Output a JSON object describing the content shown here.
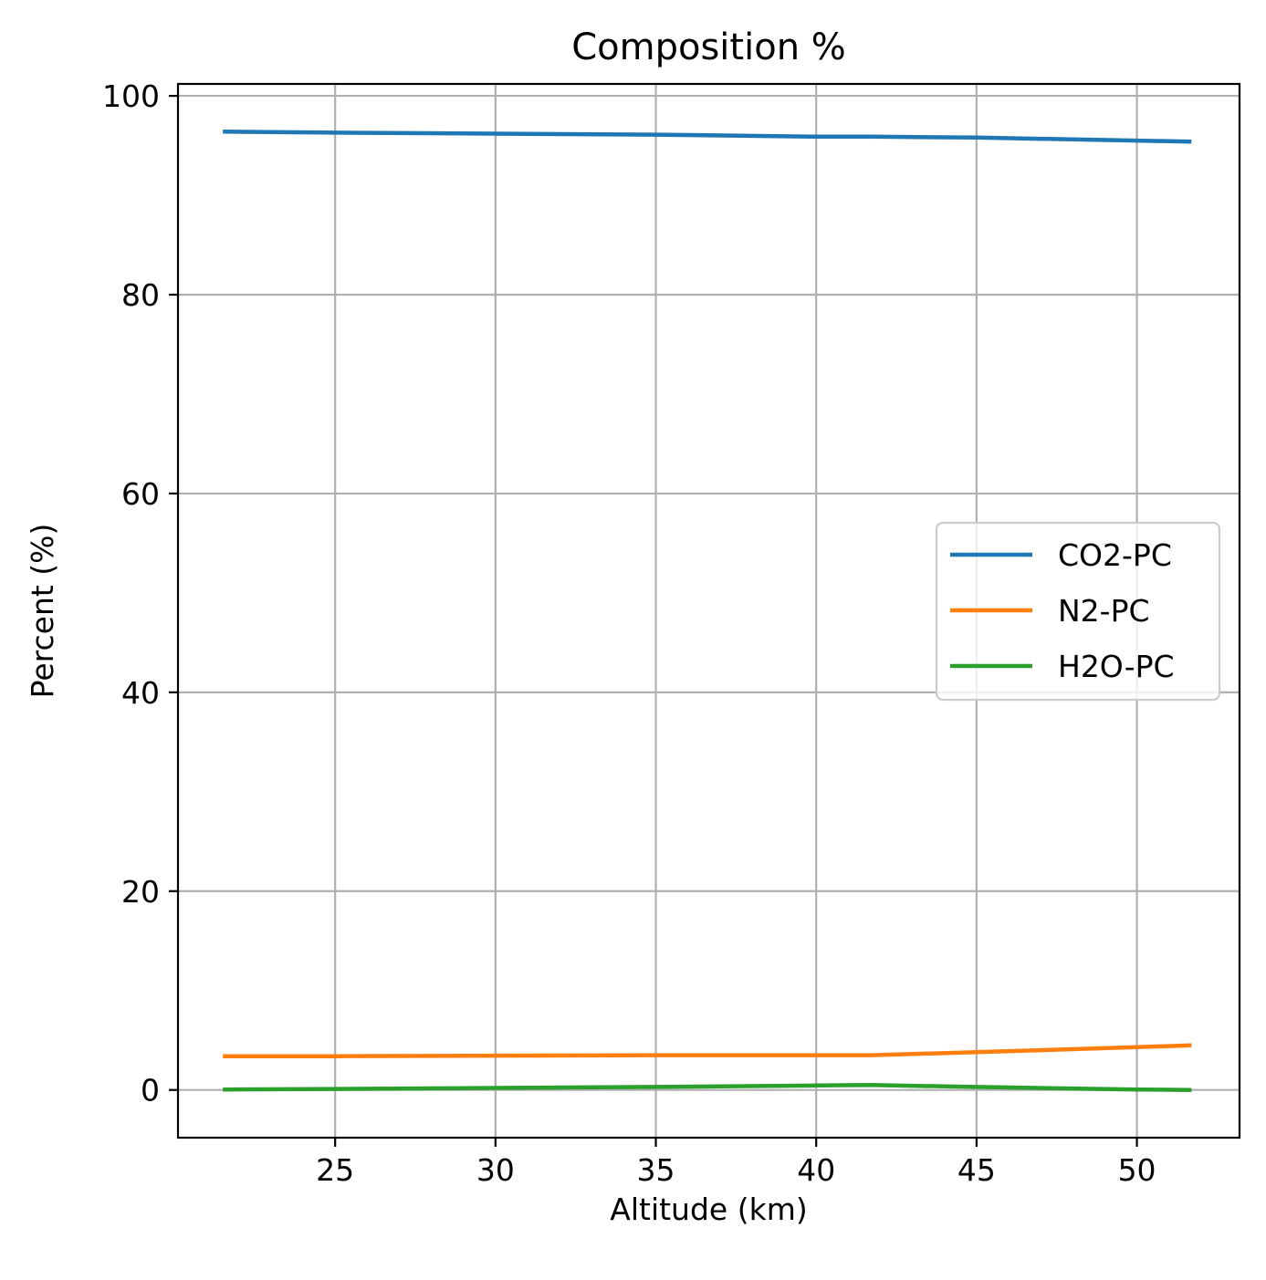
{
  "chart_data": {
    "type": "line",
    "title": "Composition %",
    "xlabel": "Altitude (km)",
    "ylabel": "Percent (%)",
    "xlim": [
      20.1,
      53.2
    ],
    "ylim": [
      -4.8,
      101.2
    ],
    "xticks": [
      25,
      30,
      35,
      40,
      45,
      50
    ],
    "yticks": [
      0,
      20,
      40,
      60,
      80,
      100
    ],
    "grid": true,
    "legend_position": "center-right",
    "x": [
      21.5,
      25,
      30,
      35,
      40,
      41.7,
      45,
      50,
      51.7
    ],
    "series": [
      {
        "name": "CO2-PC",
        "color": "#1f77b4",
        "values": [
          96.4,
          96.3,
          96.2,
          96.1,
          95.9,
          95.9,
          95.8,
          95.5,
          95.4
        ]
      },
      {
        "name": "N2-PC",
        "color": "#ff7f0e",
        "values": [
          3.4,
          3.4,
          3.45,
          3.5,
          3.5,
          3.5,
          3.8,
          4.3,
          4.5
        ]
      },
      {
        "name": "H2O-PC",
        "color": "#2ca02c",
        "values": [
          0.05,
          0.1,
          0.2,
          0.3,
          0.45,
          0.5,
          0.3,
          0.05,
          0.0
        ]
      }
    ]
  }
}
